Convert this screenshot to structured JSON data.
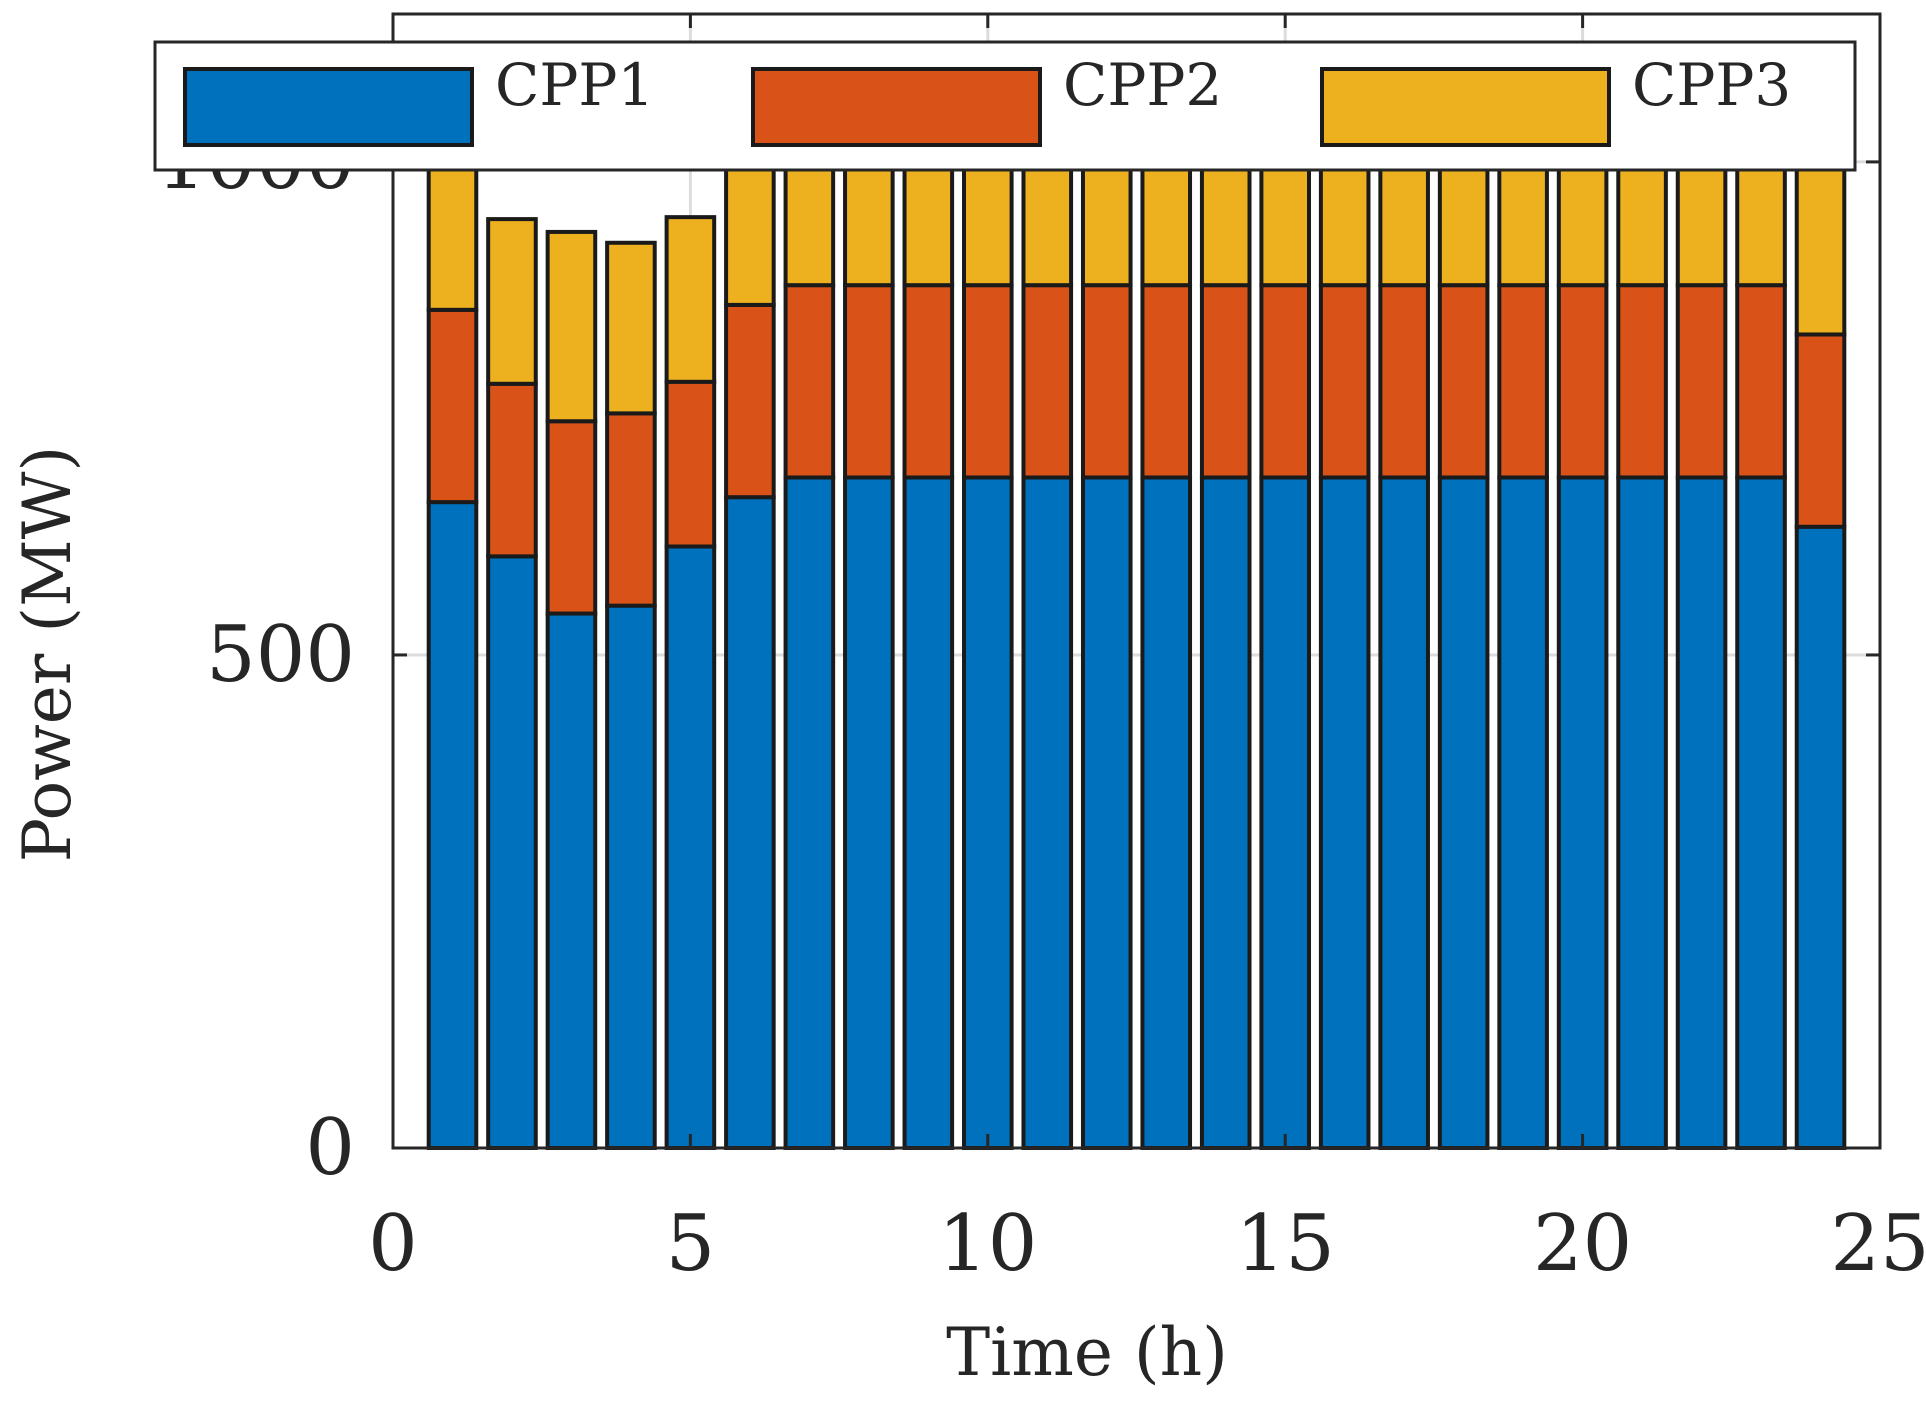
{
  "chart_data": {
    "type": "bar",
    "stacked": true,
    "xlabel": "Time (h)",
    "ylabel": "Power (MW)",
    "xlim": [
      0,
      25
    ],
    "ylim": [
      0,
      1150
    ],
    "xticks": [
      0,
      5,
      10,
      15,
      20,
      25
    ],
    "yticks": [
      0,
      500,
      1000
    ],
    "grid": true,
    "legend_position": "top",
    "x": [
      1,
      2,
      3,
      4,
      5,
      6,
      7,
      8,
      9,
      10,
      11,
      12,
      13,
      14,
      15,
      16,
      17,
      18,
      19,
      20,
      21,
      22,
      23,
      24
    ],
    "series": [
      {
        "name": "CPP1",
        "color": "#0072BD",
        "values": [
          655,
          600,
          542,
          550,
          610,
          660,
          680,
          680,
          680,
          680,
          680,
          680,
          680,
          680,
          680,
          680,
          680,
          680,
          680,
          680,
          680,
          680,
          680,
          630
        ]
      },
      {
        "name": "CPP2",
        "color": "#D95319",
        "values": [
          195,
          175,
          195,
          195,
          167,
          195,
          195,
          195,
          195,
          195,
          195,
          195,
          195,
          195,
          195,
          195,
          195,
          195,
          195,
          195,
          195,
          195,
          195,
          195
        ]
      },
      {
        "name": "CPP3",
        "color": "#EDB120",
        "values": [
          195,
          167,
          192,
          173,
          167,
          195,
          195,
          195,
          195,
          195,
          195,
          195,
          195,
          195,
          195,
          195,
          195,
          195,
          195,
          195,
          195,
          195,
          195,
          195
        ]
      }
    ]
  }
}
